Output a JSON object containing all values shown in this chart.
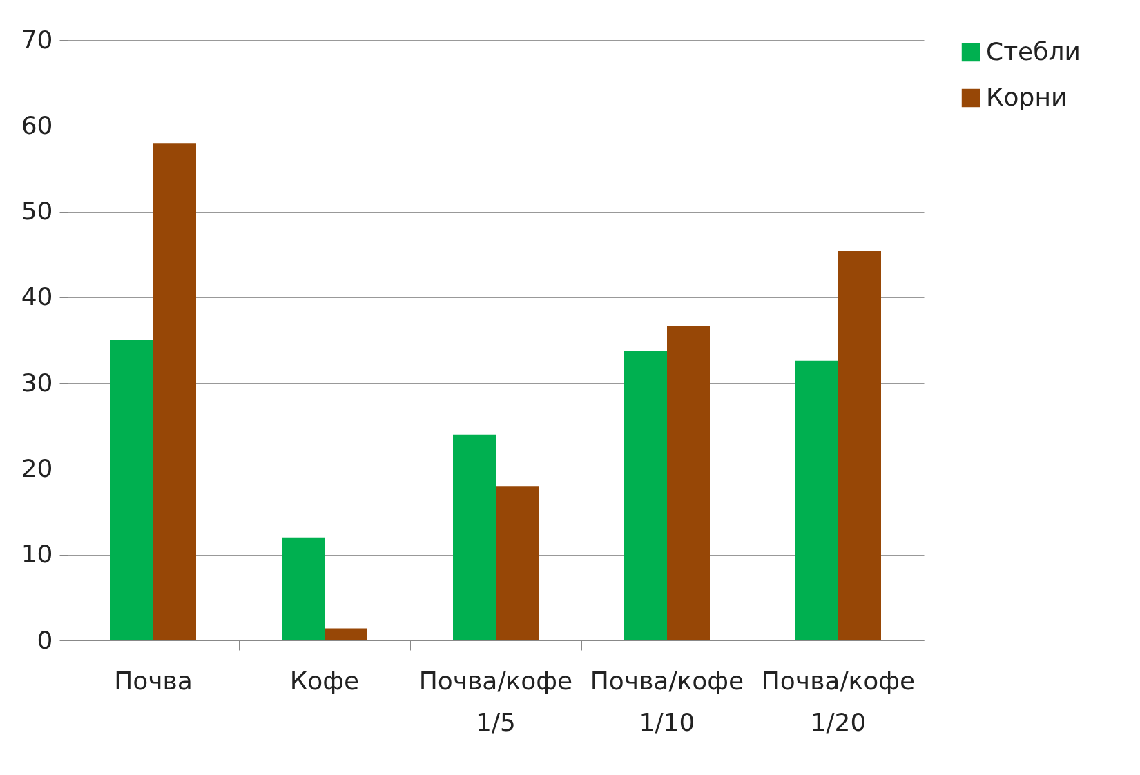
{
  "chart_data": {
    "type": "bar",
    "categories": [
      "Почва",
      "Кофе",
      "Почва/кофе 1/5",
      "Почва/кофе 1/10",
      "Почва/кофе 1/20"
    ],
    "series": [
      {
        "name": "Стебли",
        "color": "#00b050",
        "values": [
          35,
          12,
          24,
          33.8,
          32.6
        ]
      },
      {
        "name": "Корни",
        "color": "#974706",
        "values": [
          58,
          1.4,
          18,
          36.6,
          45.4
        ]
      }
    ],
    "ylim": [
      0,
      70
    ],
    "yticks": [
      0,
      10,
      20,
      30,
      40,
      50,
      60,
      70
    ],
    "grid": "y",
    "legend": "right"
  }
}
